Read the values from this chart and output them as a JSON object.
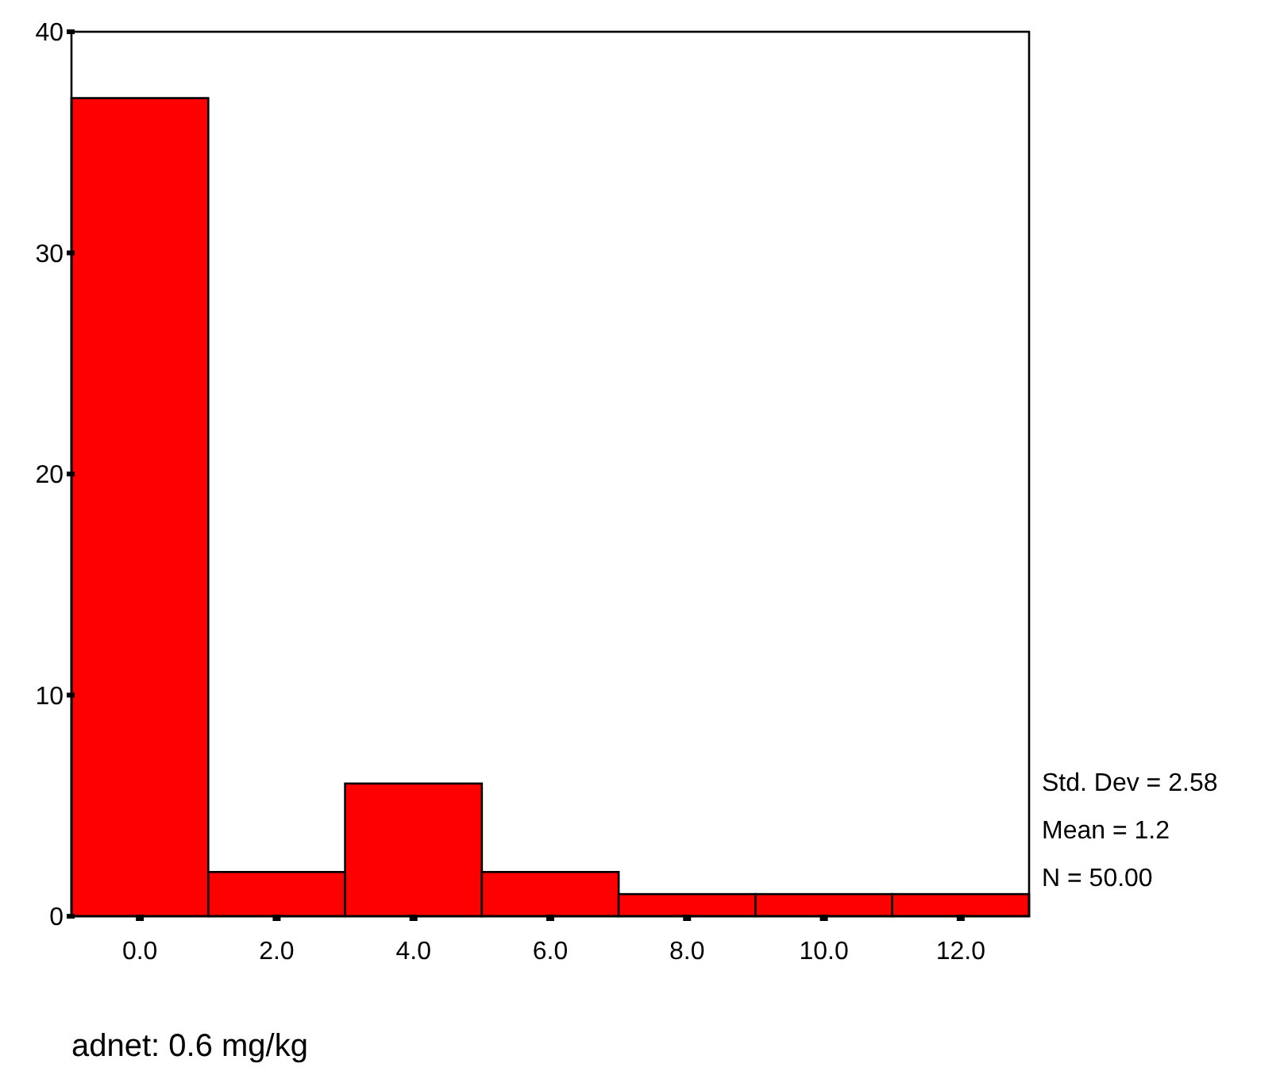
{
  "chart_data": {
    "type": "histogram",
    "xlabel": "adnet: 0.6 mg/kg",
    "bins": [
      -1,
      1,
      3,
      5,
      7,
      9,
      11,
      13
    ],
    "values": [
      37,
      2,
      6,
      2,
      1,
      1,
      1
    ],
    "color": "#ff0000",
    "xlim": [
      -1,
      13
    ],
    "ylim": [
      0,
      40
    ],
    "xticks": [
      {
        "value": 0,
        "label": "0.0"
      },
      {
        "value": 2,
        "label": "2.0"
      },
      {
        "value": 4,
        "label": "4.0"
      },
      {
        "value": 6,
        "label": "6.0"
      },
      {
        "value": 8,
        "label": "8.0"
      },
      {
        "value": 10,
        "label": "10.0"
      },
      {
        "value": 12,
        "label": "12.0"
      }
    ],
    "yticks": [
      0,
      10,
      20,
      30,
      40
    ],
    "annotations": [
      "Std. Dev = 2.58",
      "Mean = 1.2",
      "N = 50.00"
    ],
    "grid": false
  }
}
